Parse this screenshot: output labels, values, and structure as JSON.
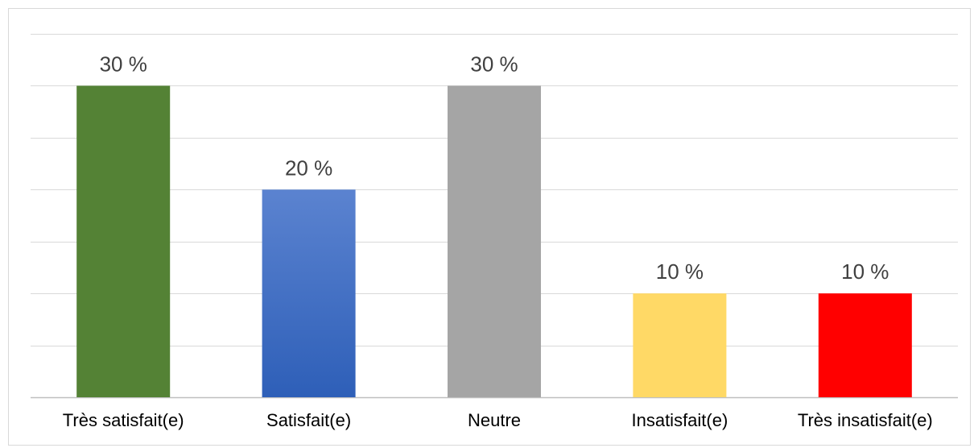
{
  "chart_data": {
    "type": "bar",
    "title": "",
    "xlabel": "",
    "ylabel": "",
    "categories": [
      "Très satisfait(e)",
      "Satisfait(e)",
      "Neutre",
      "Insatisfait(e)",
      "Très insatisfait(e)"
    ],
    "values": [
      30,
      20,
      30,
      10,
      10
    ],
    "data_labels": [
      "30 %",
      "20 %",
      "30 %",
      "10 %",
      "10 %"
    ],
    "colors": [
      "#548235",
      "#4472c4",
      "#a5a5a5",
      "#ffd966",
      "#ff0000"
    ],
    "gradient_on": [
      false,
      true,
      false,
      false,
      false
    ],
    "gradient_colors": {
      "top": "#5b83d0",
      "bottom": "#2e5fb8"
    },
    "ylim": [
      0,
      35
    ],
    "y_gridlines": [
      0,
      5,
      10,
      15,
      20,
      25,
      30,
      35
    ],
    "grid": true,
    "legend": "none"
  }
}
